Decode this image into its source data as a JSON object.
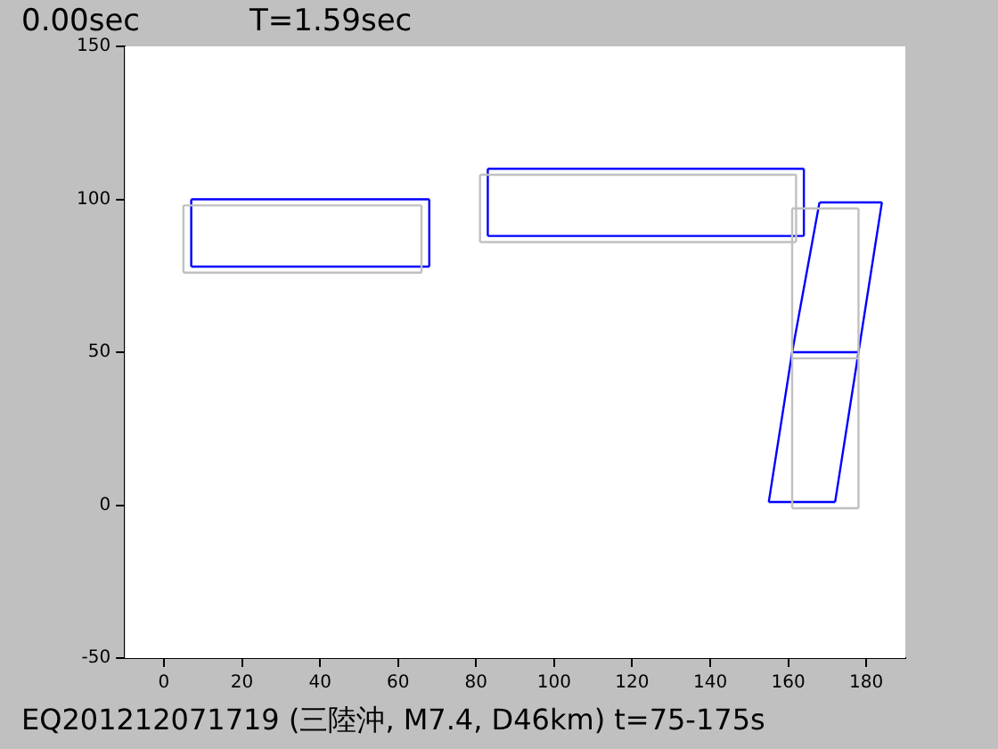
{
  "chart_data": {
    "type": "line",
    "title": "0.00sec",
    "subtitle": "T=1.59sec",
    "annotations": [
      "EQ201212071719 (三陸沖, M7.4, D46km) t=75-175s"
    ],
    "xlim": [
      -10,
      190
    ],
    "xticks": [
      0,
      20,
      40,
      60,
      80,
      100,
      120,
      140,
      160,
      180
    ],
    "ylim": [
      -50,
      150
    ],
    "yticks": [
      -50,
      0,
      50,
      100,
      150
    ],
    "grid": false,
    "legend": false,
    "marker": "none",
    "line_style": "solid",
    "series": [
      {
        "color": "#c0c0c0",
        "x": [
          5,
          66
        ],
        "values": [
          76,
          76
        ]
      },
      {
        "color": "#c0c0c0",
        "x": [
          5,
          66
        ],
        "values": [
          98,
          98
        ]
      },
      {
        "color": "#c0c0c0",
        "x": [
          5,
          5
        ],
        "values": [
          76,
          98
        ]
      },
      {
        "color": "#c0c0c0",
        "x": [
          66,
          66
        ],
        "values": [
          76,
          98
        ]
      },
      {
        "color": "#c0c0c0",
        "x": [
          81,
          162
        ],
        "values": [
          86,
          86
        ]
      },
      {
        "color": "#c0c0c0",
        "x": [
          81,
          162
        ],
        "values": [
          108,
          108
        ]
      },
      {
        "color": "#c0c0c0",
        "x": [
          81,
          81
        ],
        "values": [
          86,
          108
        ]
      },
      {
        "color": "#c0c0c0",
        "x": [
          162,
          162
        ],
        "values": [
          86,
          108
        ]
      },
      {
        "color": "#c0c0c0",
        "x": [
          161,
          178
        ],
        "values": [
          -1,
          -1
        ]
      },
      {
        "color": "#c0c0c0",
        "x": [
          161,
          178
        ],
        "values": [
          48,
          48
        ]
      },
      {
        "color": "#c0c0c0",
        "x": [
          161,
          178
        ],
        "values": [
          97,
          97
        ]
      },
      {
        "color": "#c0c0c0",
        "x": [
          161,
          161
        ],
        "values": [
          -1,
          97
        ]
      },
      {
        "color": "#c0c0c0",
        "x": [
          178,
          178
        ],
        "values": [
          -1,
          97
        ]
      },
      {
        "color": "#0000ff",
        "x": [
          7,
          68
        ],
        "values": [
          78,
          78
        ]
      },
      {
        "color": "#0000ff",
        "x": [
          7,
          68
        ],
        "values": [
          100,
          100
        ]
      },
      {
        "color": "#0000ff",
        "x": [
          7,
          7
        ],
        "values": [
          78,
          100
        ]
      },
      {
        "color": "#0000ff",
        "x": [
          68,
          68
        ],
        "values": [
          78,
          100
        ]
      },
      {
        "color": "#0000ff",
        "x": [
          83,
          164
        ],
        "values": [
          88,
          88
        ]
      },
      {
        "color": "#0000ff",
        "x": [
          83,
          164
        ],
        "values": [
          110,
          110
        ]
      },
      {
        "color": "#0000ff",
        "x": [
          83,
          83
        ],
        "values": [
          88,
          110
        ]
      },
      {
        "color": "#0000ff",
        "x": [
          164,
          164
        ],
        "values": [
          88,
          110
        ]
      },
      {
        "color": "#0000ff",
        "x": [
          155,
          172
        ],
        "values": [
          1,
          1
        ]
      },
      {
        "color": "#0000ff",
        "x": [
          161,
          178
        ],
        "values": [
          50,
          50
        ]
      },
      {
        "color": "#0000ff",
        "x": [
          168,
          184
        ],
        "values": [
          99,
          99
        ]
      },
      {
        "color": "#0000ff",
        "x": [
          155,
          161,
          168
        ],
        "values": [
          1,
          50,
          99
        ]
      },
      {
        "color": "#0000ff",
        "x": [
          172,
          178,
          184
        ],
        "values": [
          1,
          50,
          99
        ]
      }
    ]
  }
}
